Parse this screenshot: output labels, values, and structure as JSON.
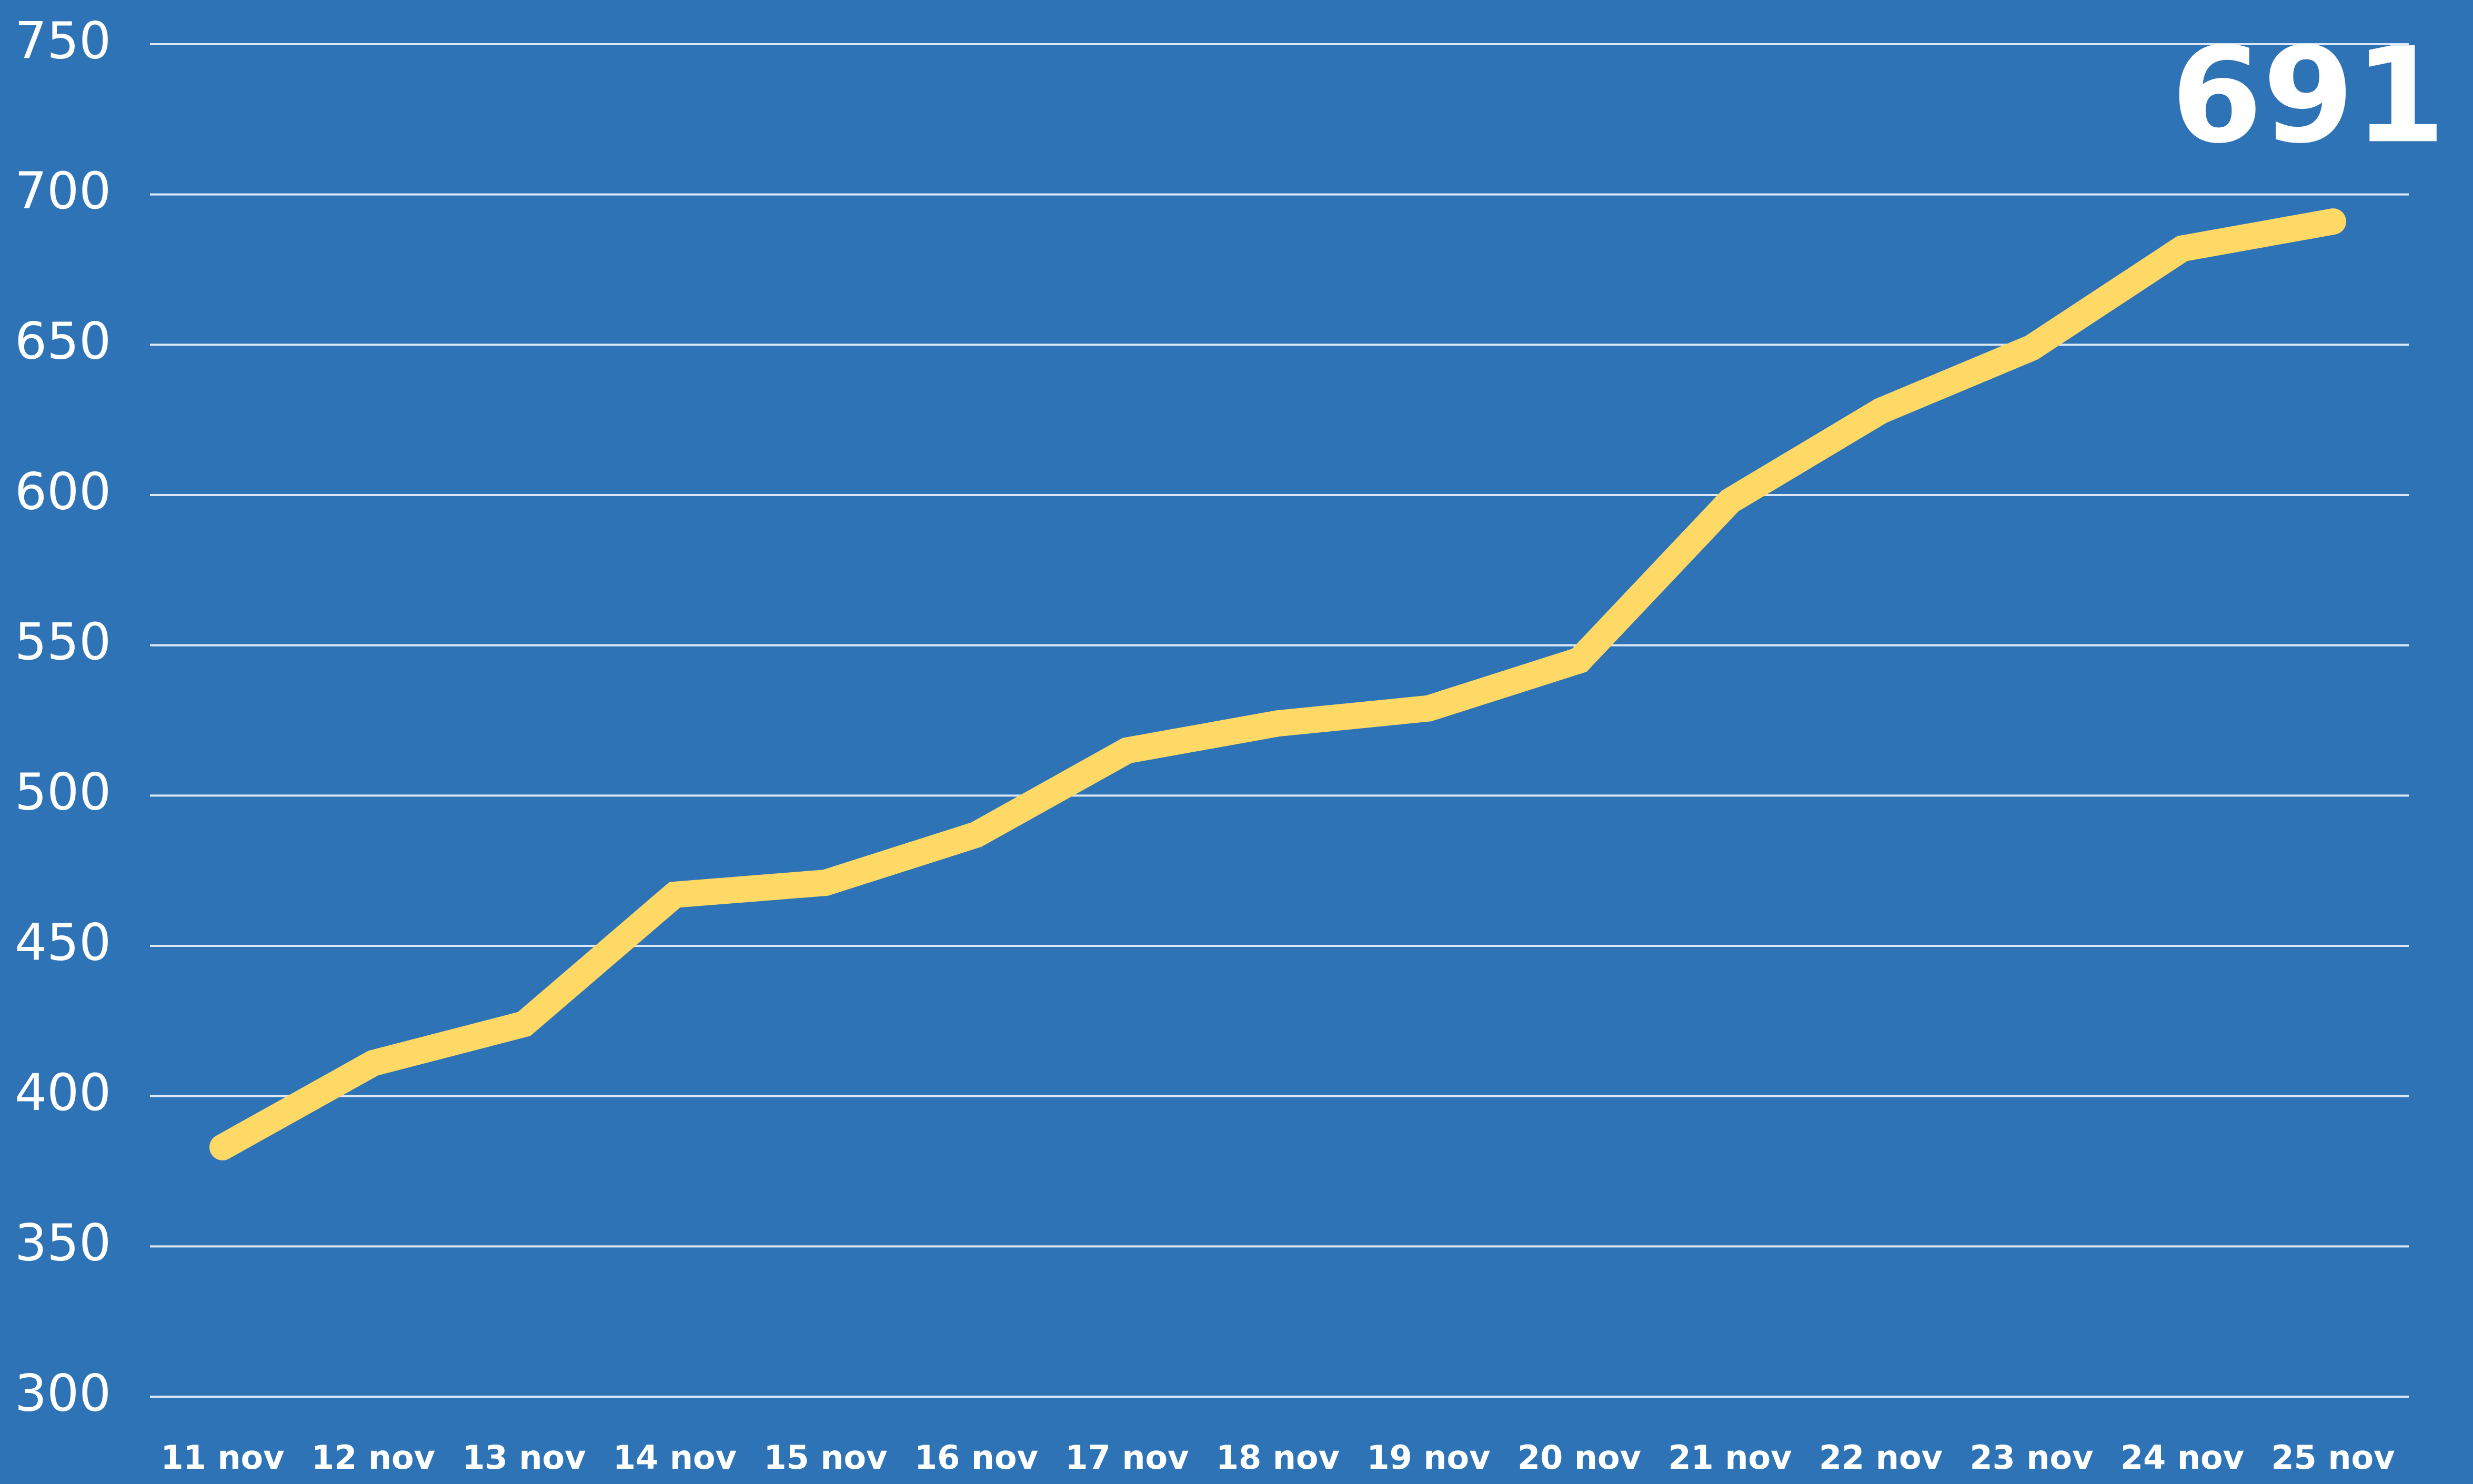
{
  "chart_data": {
    "type": "line",
    "categories": [
      "11 nov",
      "12 nov",
      "13 nov",
      "14 nov",
      "15 nov",
      "16 nov",
      "17 nov",
      "18 nov",
      "19 nov",
      "20 nov",
      "21 nov",
      "22 nov",
      "23 nov",
      "24 nov",
      "25 nov"
    ],
    "series": [
      {
        "color": "#ffd966",
        "values": [
          383,
          411,
          424,
          467,
          471,
          487,
          515,
          524,
          529,
          545,
          598,
          628,
          649,
          682,
          691
        ]
      }
    ],
    "ylim": [
      300,
      750
    ],
    "yticks": [
      300,
      350,
      400,
      450,
      500,
      550,
      600,
      650,
      700,
      750
    ],
    "grid": true,
    "background": "#2e73b5"
  }
}
